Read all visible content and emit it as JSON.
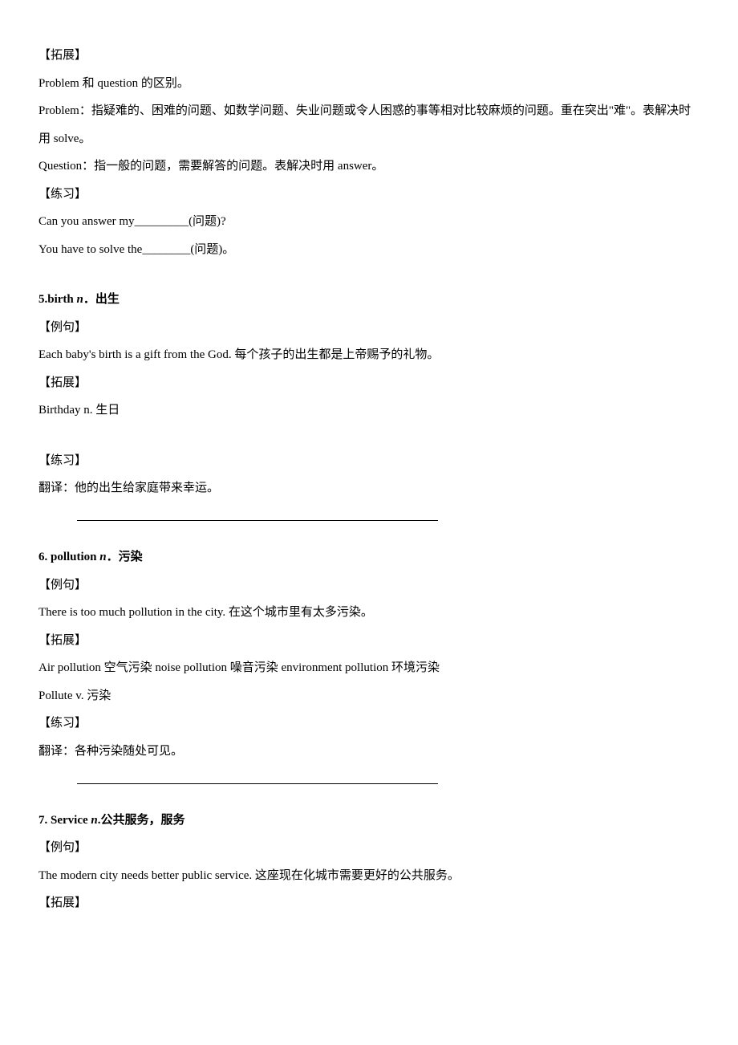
{
  "s1": {
    "expand_label": "【拓展】",
    "line1": "Problem  和 question 的区别。",
    "line2": "Problem：指疑难的、困难的问题、如数学问题、失业问题或令人困惑的事等相对比较麻烦的问题。重在突出\"难\"。表解决时用 solve。",
    "line3": "Question：指一般的问题，需要解答的问题。表解决时用 answer。",
    "practice_label": "【练习】",
    "prac1_pre": "Can you answer my",
    "prac1_blank": "_________",
    "prac1_post": "(问题)?",
    "prac2_pre": "You have to solve the",
    "prac2_blank": "________",
    "prac2_post": "(问题)。"
  },
  "s5": {
    "heading_pre": "5.birth ",
    "heading_pos": "n",
    "heading_post": "．出生",
    "example_label": "【例句】",
    "example": "Each baby's birth is a gift from the God.  每个孩子的出生都是上帝赐予的礼物。",
    "expand_label": "【拓展】",
    "expand": "Birthday     n.  生日",
    "practice_label": "【练习】",
    "practice": "翻译：他的出生给家庭带来幸运。"
  },
  "s6": {
    "heading_pre": "6. pollution ",
    "heading_pos": "n",
    "heading_post": "．污染",
    "example_label": "【例句】",
    "example": "There is too much pollution in the city.  在这个城市里有太多污染。",
    "expand_label": "【拓展】",
    "expand1": "Air pollution  空气污染         noise pollution  噪音污染         environment pollution  环境污染",
    "expand2": "Pollute    v.  污染",
    "practice_label": "【练习】",
    "practice": "翻译：各种污染随处可见。"
  },
  "s7": {
    "heading_pre": "7. Service ",
    "heading_pos": "n",
    "heading_post": ".公共服务，服务",
    "example_label": "【例句】",
    "example": "The modern city needs better public service.    这座现在化城市需要更好的公共服务。",
    "expand_label": "【拓展】"
  }
}
